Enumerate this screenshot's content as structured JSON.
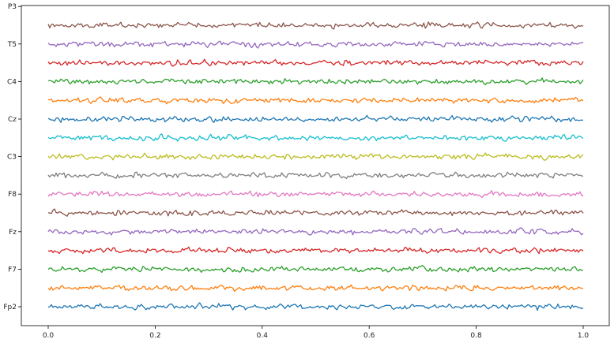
{
  "chart_data": {
    "type": "line",
    "title": "",
    "xlabel": "",
    "ylabel": "",
    "xlim": [
      0.0,
      1.0
    ],
    "xticks": [
      {
        "value": 0.0,
        "label": "0.0"
      },
      {
        "value": 0.2,
        "label": "0.2"
      },
      {
        "value": 0.4,
        "label": "0.4"
      },
      {
        "value": 0.6,
        "label": "0.6"
      },
      {
        "value": 0.8,
        "label": "0.8"
      },
      {
        "value": 1.0,
        "label": "1.0"
      }
    ],
    "yticks": [
      {
        "index": 0,
        "label": "Fp2"
      },
      {
        "index": 2,
        "label": "F7"
      },
      {
        "index": 4,
        "label": "Fz"
      },
      {
        "index": 6,
        "label": "F8"
      },
      {
        "index": 8,
        "label": "C3"
      },
      {
        "index": 10,
        "label": "Cz"
      },
      {
        "index": 12,
        "label": "C4"
      },
      {
        "index": 14,
        "label": "T5"
      },
      {
        "index": 16,
        "label": "P3"
      }
    ],
    "channel_count": 16,
    "grid": false,
    "legend": "none",
    "series": [
      {
        "color": "#1f77b4"
      },
      {
        "color": "#ff7f0e"
      },
      {
        "color": "#2ca02c"
      },
      {
        "color": "#d62728"
      },
      {
        "color": "#9467bd"
      },
      {
        "color": "#8c564b"
      },
      {
        "color": "#e377c2"
      },
      {
        "color": "#7f7f7f"
      },
      {
        "color": "#bcbd22"
      },
      {
        "color": "#17becf"
      },
      {
        "color": "#1f77b4"
      },
      {
        "color": "#ff7f0e"
      },
      {
        "color": "#2ca02c"
      },
      {
        "color": "#d62728"
      },
      {
        "color": "#9467bd"
      },
      {
        "color": "#8c564b"
      }
    ]
  }
}
